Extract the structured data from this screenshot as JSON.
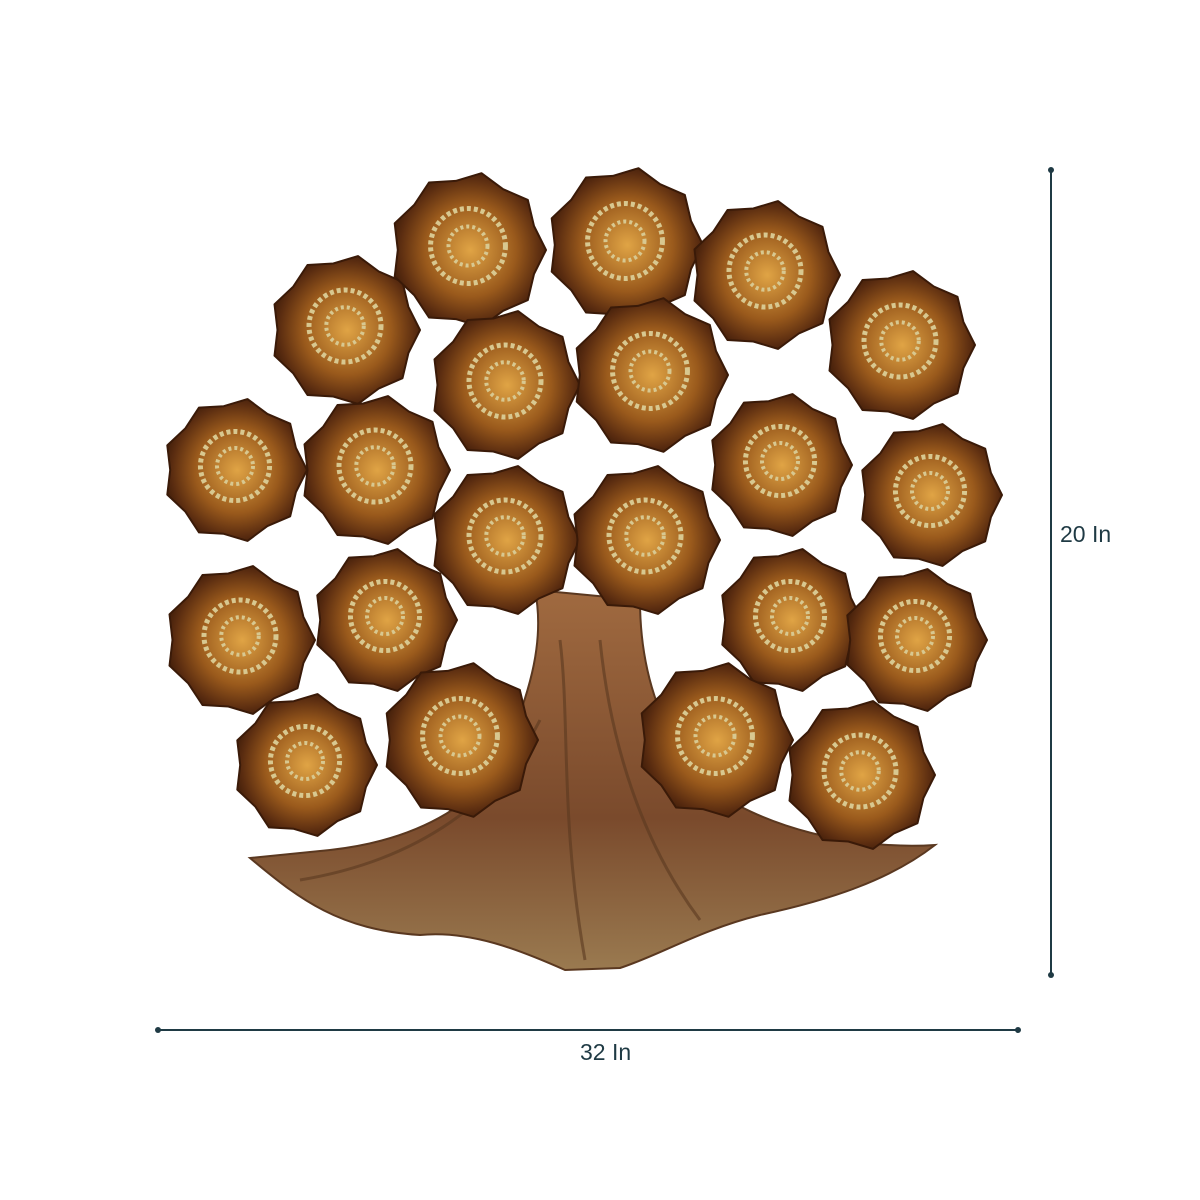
{
  "product": {
    "description_visible": "",
    "height_label": "20 In",
    "width_label": "32 In"
  },
  "colors": {
    "dimension_line": "#1f3a44",
    "petal_dark": "#4a2410",
    "petal_mid": "#9a5a1c",
    "petal_light": "#d99a3a",
    "filigree_gold": "#d8c890",
    "trunk": "#8a5a3a"
  }
}
